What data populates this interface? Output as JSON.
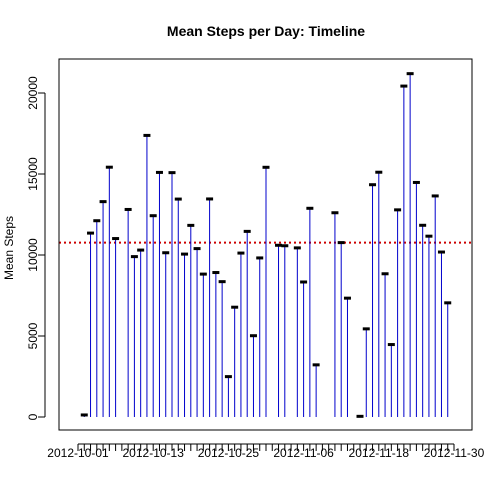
{
  "chart_data": {
    "type": "line",
    "style": "histogram-lines",
    "title": "Mean Steps per Day: Timeline",
    "xlabel": "",
    "ylabel": "Mean Steps",
    "x": [
      "2012-10-01",
      "2012-10-02",
      "2012-10-03",
      "2012-10-04",
      "2012-10-05",
      "2012-10-06",
      "2012-10-07",
      "2012-10-08",
      "2012-10-09",
      "2012-10-10",
      "2012-10-11",
      "2012-10-12",
      "2012-10-13",
      "2012-10-14",
      "2012-10-15",
      "2012-10-16",
      "2012-10-17",
      "2012-10-18",
      "2012-10-19",
      "2012-10-20",
      "2012-10-21",
      "2012-10-22",
      "2012-10-23",
      "2012-10-24",
      "2012-10-25",
      "2012-10-26",
      "2012-10-27",
      "2012-10-28",
      "2012-10-29",
      "2012-10-30",
      "2012-10-31",
      "2012-11-01",
      "2012-11-02",
      "2012-11-03",
      "2012-11-04",
      "2012-11-05",
      "2012-11-06",
      "2012-11-07",
      "2012-11-08",
      "2012-11-09",
      "2012-11-10",
      "2012-11-11",
      "2012-11-12",
      "2012-11-13",
      "2012-11-14",
      "2012-11-15",
      "2012-11-16",
      "2012-11-17",
      "2012-11-18",
      "2012-11-19",
      "2012-11-20",
      "2012-11-21",
      "2012-11-22",
      "2012-11-23",
      "2012-11-24",
      "2012-11-25",
      "2012-11-26",
      "2012-11-27",
      "2012-11-28",
      "2012-11-29",
      "2012-11-30"
    ],
    "values": [
      null,
      126,
      11352,
      12116,
      13294,
      15420,
      11015,
      null,
      12811,
      9900,
      10304,
      17382,
      12426,
      15098,
      10139,
      15084,
      13452,
      10056,
      11829,
      10395,
      8821,
      13460,
      8918,
      8355,
      2492,
      6778,
      10119,
      11458,
      5018,
      9819,
      15414,
      null,
      10600,
      10571,
      null,
      10439,
      8334,
      12883,
      3219,
      null,
      null,
      12608,
      10765,
      7336,
      null,
      41,
      5441,
      14339,
      15110,
      8841,
      4472,
      12787,
      20427,
      21194,
      14478,
      11834,
      11162,
      13646,
      10183,
      7047,
      null
    ],
    "series_color": "#0000cc",
    "ylim": [
      0,
      21500
    ],
    "yticks": [
      0,
      5000,
      10000,
      15000,
      20000
    ],
    "xtick_labels": [
      "2012-10-01",
      "2012-10-13",
      "2012-10-25",
      "2012-11-06",
      "2012-11-18",
      "2012-11-30"
    ],
    "reference_line": {
      "value": 10766,
      "color": "#cc0000",
      "style": "dotted"
    },
    "grid": false,
    "legend": "none"
  }
}
